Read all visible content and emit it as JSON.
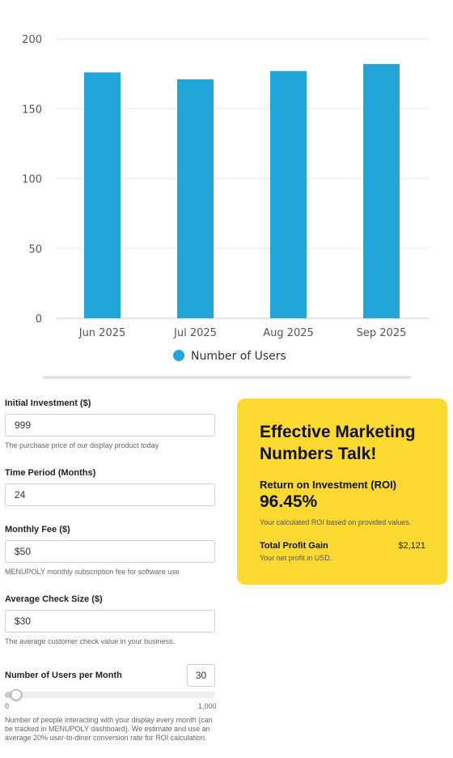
{
  "chart_data": {
    "type": "bar",
    "categories": [
      "Jun 2025",
      "Jul 2025",
      "Aug 2025",
      "Sep 2025"
    ],
    "series": [
      {
        "name": "Number of Users",
        "values": [
          176,
          171,
          177,
          182
        ]
      }
    ],
    "ylim": [
      0,
      200
    ],
    "yticks": [
      0,
      50,
      100,
      150,
      200
    ],
    "grid": true,
    "legend": "bottom-center",
    "bar_color": "#22a6d8"
  },
  "form": {
    "initial_investment": {
      "label": "Initial Investment ($)",
      "value": "999",
      "help": "The purchase price of our display product today"
    },
    "time_period": {
      "label": "Time Period (Months)",
      "value": "24"
    },
    "monthly_fee": {
      "label": "Monthly Fee ($)",
      "value": "$50",
      "help": "MENUPOLY monthly subscription fee for software use"
    },
    "average_check": {
      "label": "Average Check Size ($)",
      "value": "$30",
      "help": "The average customer check value in your business."
    },
    "users_per_month": {
      "label": "Number of Users per Month",
      "value": 30,
      "min": 0,
      "max": 1000,
      "min_label": "0",
      "max_label": "1,000",
      "help_lines": [
        "Number of people interacting with your display every month (can",
        "be tracked in MENUPOLY dashboard). We estimate and use an",
        "average 20% user-to-diner conversion rate for ROI calculation."
      ]
    }
  },
  "roi_card": {
    "title_lines": [
      "Effective Marketing",
      "Numbers Talk!"
    ],
    "roi_label": "Return on Investment (ROI)",
    "roi_value": "96.45%",
    "roi_note": "Your calculated ROI based on provided values.",
    "profit_label": "Total Profit Gain",
    "profit_value": "$2,121",
    "profit_note": "Your net profit in USD.",
    "background": "#fcd931"
  }
}
